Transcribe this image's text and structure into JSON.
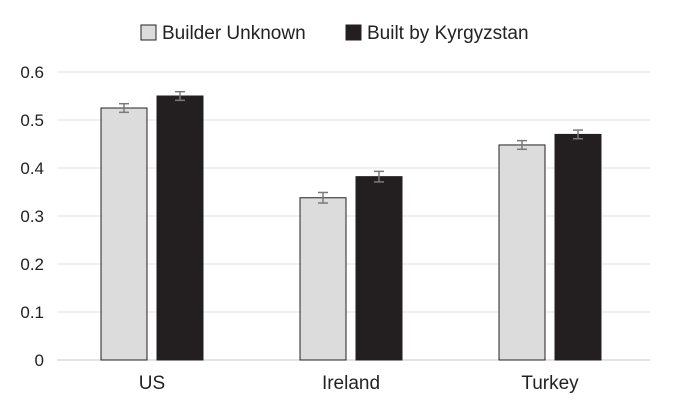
{
  "chart_data": {
    "type": "bar",
    "categories": [
      "US",
      "Ireland",
      "Turkey"
    ],
    "series": [
      {
        "name": "Builder Unknown",
        "values": [
          0.525,
          0.338,
          0.448
        ],
        "errors": [
          0.009,
          0.011,
          0.009
        ],
        "color": "#dcdcdc"
      },
      {
        "name": "Built by Kyrgyzstan",
        "values": [
          0.55,
          0.382,
          0.47
        ],
        "errors": [
          0.009,
          0.011,
          0.009
        ],
        "color": "#231f20"
      }
    ],
    "ylim": [
      0,
      0.6
    ],
    "yticks": [
      "0",
      "0.1",
      "0.2",
      "0.3",
      "0.4",
      "0.5",
      "0.6"
    ],
    "grid": true,
    "legend_position": "top-center",
    "title": "",
    "xlabel": "",
    "ylabel": ""
  }
}
